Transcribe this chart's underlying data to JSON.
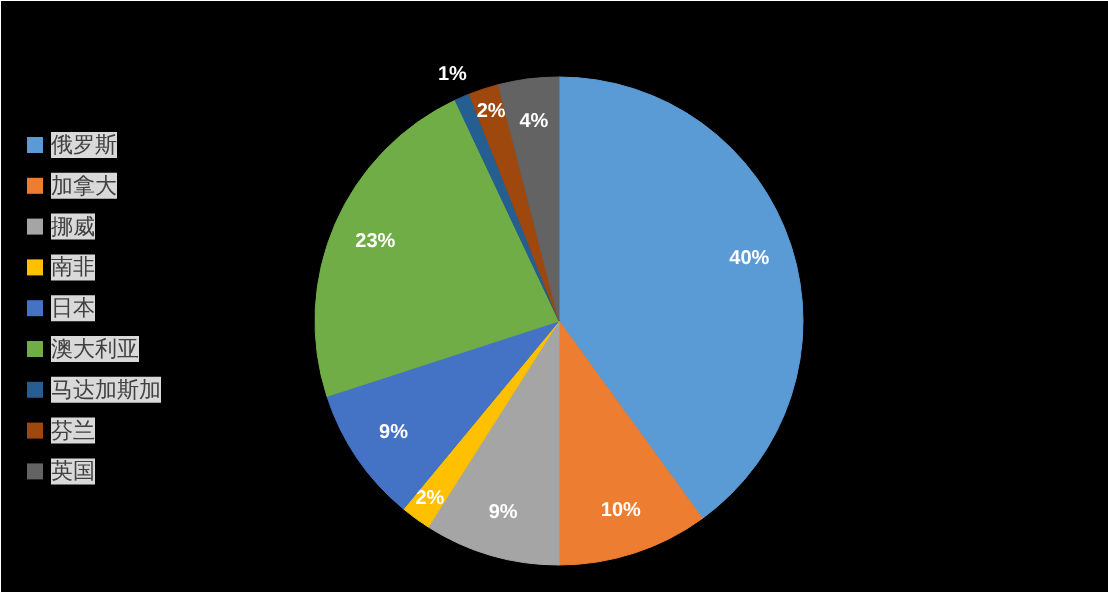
{
  "chart_data": {
    "type": "pie",
    "categories": [
      "俄罗斯",
      "加拿大",
      "挪威",
      "南非",
      "日本",
      "澳大利亚",
      "马达加斯加",
      "芬兰",
      "英国"
    ],
    "values": [
      40,
      10,
      9,
      2,
      9,
      23,
      1,
      2,
      4
    ],
    "colors": [
      "#5b9bd5",
      "#ed7d31",
      "#a5a5a5",
      "#ffc000",
      "#4472c4",
      "#70ad47",
      "#255e91",
      "#9e480e",
      "#636363"
    ],
    "value_labels": [
      "40%",
      "10%",
      "9%",
      "2%",
      "9%",
      "23%",
      "1%",
      "2%",
      "4%"
    ],
    "legend": "left"
  }
}
